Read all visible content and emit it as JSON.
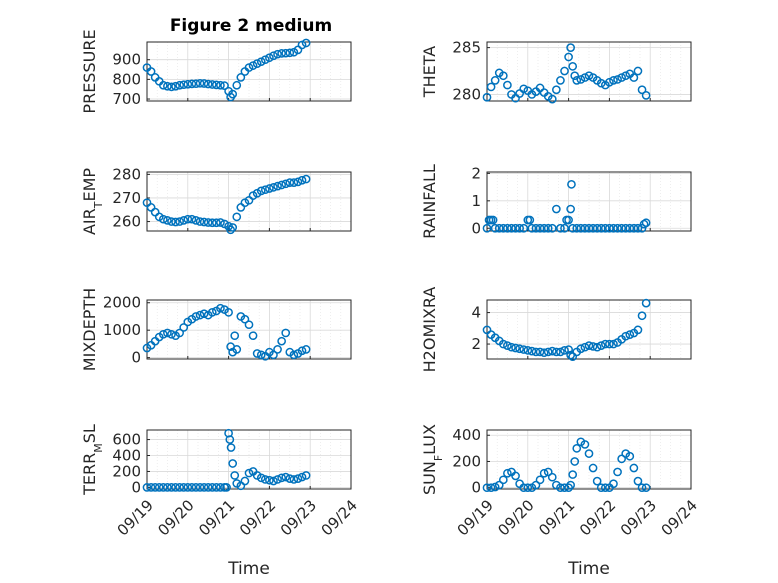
{
  "figure": {
    "title": "Figure 2 medium",
    "marker_color": "#0072BD"
  },
  "chart_data": [
    {
      "type": "scatter",
      "title": "Figure 2 medium",
      "ylabel": "PRESSURE",
      "ylabel_parts": [
        [
          "PRESSURE",
          false
        ]
      ],
      "xlabel": "",
      "xlim": [
        "09/19",
        "09/24"
      ],
      "ylim": [
        690,
        990
      ],
      "yticks": [
        700,
        800,
        900
      ],
      "ytick_labels": [
        "700",
        "800",
        "900"
      ],
      "grid": true,
      "x_tick_labels_shown": false,
      "x": [
        0,
        0.1,
        0.2,
        0.3,
        0.4,
        0.5,
        0.6,
        0.7,
        0.8,
        0.9,
        1,
        1.1,
        1.2,
        1.3,
        1.4,
        1.5,
        1.6,
        1.7,
        1.8,
        1.9,
        2,
        2.05,
        2.1,
        2.2,
        2.3,
        2.4,
        2.5,
        2.6,
        2.7,
        2.8,
        2.9,
        3,
        3.1,
        3.2,
        3.3,
        3.4,
        3.5,
        3.6,
        3.7,
        3.8,
        3.9
      ],
      "y": [
        860,
        840,
        810,
        790,
        770,
        765,
        762,
        765,
        770,
        773,
        775,
        777,
        778,
        780,
        779,
        776,
        774,
        772,
        770,
        768,
        740,
        710,
        725,
        770,
        810,
        840,
        860,
        870,
        880,
        890,
        900,
        910,
        920,
        928,
        932,
        933,
        935,
        938,
        950,
        975,
        985
      ]
    },
    {
      "type": "scatter",
      "ylabel": "THETA",
      "ylabel_parts": [
        [
          "THETA",
          false
        ]
      ],
      "xlabel": "",
      "xlim": [
        "09/19",
        "09/24"
      ],
      "ylim": [
        279.3,
        285.6
      ],
      "yticks": [
        280,
        285
      ],
      "ytick_labels": [
        "280",
        "285"
      ],
      "grid": true,
      "x_tick_labels_shown": false,
      "x": [
        0,
        0.1,
        0.2,
        0.3,
        0.4,
        0.5,
        0.6,
        0.7,
        0.8,
        0.9,
        1,
        1.1,
        1.2,
        1.3,
        1.4,
        1.5,
        1.6,
        1.7,
        1.8,
        1.9,
        2,
        2.05,
        2.1,
        2.15,
        2.2,
        2.3,
        2.4,
        2.5,
        2.6,
        2.7,
        2.8,
        2.9,
        3,
        3.1,
        3.2,
        3.3,
        3.4,
        3.5,
        3.6,
        3.7,
        3.8,
        3.9
      ],
      "y": [
        279.7,
        280.8,
        281.5,
        282.3,
        282.0,
        281.0,
        280.0,
        279.6,
        280.1,
        280.6,
        280.4,
        280.0,
        280.3,
        280.7,
        280.2,
        279.8,
        279.5,
        280.5,
        281.5,
        282.5,
        284.0,
        285.0,
        283.0,
        282.0,
        281.5,
        281.6,
        281.8,
        282.0,
        281.8,
        281.5,
        281.2,
        281.0,
        281.3,
        281.5,
        281.6,
        281.8,
        282.0,
        282.2,
        281.8,
        282.5,
        280.5,
        279.9
      ]
    },
    {
      "type": "scatter",
      "ylabel": "AIR_TEMP",
      "ylabel_parts": [
        [
          "AIR",
          false
        ],
        [
          "T",
          true
        ],
        [
          "EMP",
          false
        ]
      ],
      "xlabel": "",
      "xlim": [
        "09/19",
        "09/24"
      ],
      "ylim": [
        256,
        281
      ],
      "yticks": [
        260,
        270,
        280
      ],
      "ytick_labels": [
        "260",
        "270",
        "280"
      ],
      "grid": true,
      "x_tick_labels_shown": false,
      "x": [
        0,
        0.1,
        0.2,
        0.3,
        0.4,
        0.5,
        0.6,
        0.7,
        0.8,
        0.9,
        1,
        1.1,
        1.2,
        1.3,
        1.4,
        1.5,
        1.6,
        1.7,
        1.8,
        1.9,
        2,
        2.05,
        2.1,
        2.2,
        2.3,
        2.4,
        2.5,
        2.6,
        2.7,
        2.8,
        2.9,
        3,
        3.1,
        3.2,
        3.3,
        3.4,
        3.5,
        3.6,
        3.7,
        3.8,
        3.9
      ],
      "y": [
        268,
        266,
        264,
        262,
        261,
        260.5,
        260,
        259.8,
        260,
        260.5,
        261,
        261,
        260.5,
        260,
        259.8,
        259.6,
        259.5,
        259.5,
        259.6,
        259,
        258,
        256.5,
        257.5,
        262,
        266,
        268,
        269,
        271,
        272,
        273,
        273.5,
        274,
        274.5,
        275,
        275.5,
        276,
        276.5,
        276.5,
        276.8,
        277.5,
        278
      ]
    },
    {
      "type": "scatter",
      "ylabel": "RAINFALL",
      "ylabel_parts": [
        [
          "RAINFALL",
          false
        ]
      ],
      "xlabel": "",
      "xlim": [
        "09/19",
        "09/24"
      ],
      "ylim": [
        -0.1,
        2.05
      ],
      "yticks": [
        0,
        1,
        2
      ],
      "ytick_labels": [
        "0",
        "1",
        "2"
      ],
      "grid": true,
      "x_tick_labels_shown": false,
      "x": [
        0,
        0.05,
        0.1,
        0.15,
        0.2,
        0.3,
        0.4,
        0.5,
        0.6,
        0.7,
        0.8,
        0.9,
        1,
        1.05,
        1.1,
        1.2,
        1.3,
        1.4,
        1.5,
        1.6,
        1.7,
        1.8,
        1.9,
        1.95,
        2,
        2.05,
        2.07,
        2.1,
        2.2,
        2.3,
        2.4,
        2.5,
        2.6,
        2.7,
        2.8,
        2.9,
        3,
        3.1,
        3.2,
        3.3,
        3.4,
        3.5,
        3.6,
        3.7,
        3.8,
        3.85,
        3.9
      ],
      "y": [
        0,
        0.3,
        0.3,
        0.3,
        0,
        0,
        0,
        0,
        0,
        0,
        0,
        0,
        0.3,
        0.3,
        0,
        0,
        0,
        0,
        0,
        0,
        0.7,
        0,
        0,
        0.3,
        0.3,
        0.7,
        1.6,
        0,
        0,
        0,
        0,
        0,
        0,
        0,
        0,
        0,
        0,
        0,
        0,
        0,
        0,
        0,
        0,
        0,
        0,
        0.15,
        0.2
      ]
    },
    {
      "type": "scatter",
      "ylabel": "MIXDEPTH",
      "ylabel_parts": [
        [
          "MIXDEPTH",
          false
        ]
      ],
      "xlabel": "",
      "xlim": [
        "09/19",
        "09/24"
      ],
      "ylim": [
        -50,
        2100
      ],
      "yticks": [
        0,
        1000,
        2000
      ],
      "ytick_labels": [
        "0",
        "1000",
        "2000"
      ],
      "grid": true,
      "x_tick_labels_shown": false,
      "x": [
        0,
        0.1,
        0.2,
        0.3,
        0.4,
        0.5,
        0.6,
        0.7,
        0.8,
        0.9,
        1,
        1.1,
        1.2,
        1.3,
        1.4,
        1.5,
        1.6,
        1.7,
        1.8,
        1.9,
        2,
        2.05,
        2.1,
        2.15,
        2.2,
        2.3,
        2.4,
        2.5,
        2.6,
        2.7,
        2.8,
        2.9,
        3,
        3.1,
        3.2,
        3.3,
        3.4,
        3.5,
        3.6,
        3.7,
        3.8,
        3.9
      ],
      "y": [
        350,
        450,
        600,
        750,
        850,
        900,
        850,
        800,
        900,
        1100,
        1300,
        1400,
        1500,
        1550,
        1600,
        1550,
        1650,
        1700,
        1800,
        1750,
        1650,
        400,
        200,
        800,
        300,
        1500,
        1400,
        1200,
        800,
        150,
        100,
        50,
        200,
        100,
        300,
        600,
        900,
        200,
        100,
        150,
        250,
        300
      ]
    },
    {
      "type": "scatter",
      "ylabel": "H2OMIXRA",
      "ylabel_parts": [
        [
          "H2OMIXRA",
          false
        ]
      ],
      "xlabel": "",
      "xlim": [
        "09/19",
        "09/24"
      ],
      "ylim": [
        1.05,
        4.8
      ],
      "yticks": [
        2,
        4
      ],
      "ytick_labels": [
        "2",
        "4"
      ],
      "grid": true,
      "x_tick_labels_shown": false,
      "x": [
        0,
        0.1,
        0.2,
        0.3,
        0.4,
        0.5,
        0.6,
        0.7,
        0.8,
        0.9,
        1,
        1.1,
        1.2,
        1.3,
        1.4,
        1.5,
        1.6,
        1.7,
        1.8,
        1.9,
        2,
        2.05,
        2.1,
        2.2,
        2.3,
        2.4,
        2.5,
        2.6,
        2.7,
        2.8,
        2.9,
        3,
        3.1,
        3.2,
        3.3,
        3.4,
        3.5,
        3.6,
        3.7,
        3.8,
        3.9
      ],
      "y": [
        2.9,
        2.6,
        2.4,
        2.2,
        2.0,
        1.9,
        1.8,
        1.75,
        1.7,
        1.65,
        1.6,
        1.55,
        1.5,
        1.5,
        1.45,
        1.5,
        1.55,
        1.5,
        1.5,
        1.6,
        1.65,
        1.3,
        1.2,
        1.5,
        1.7,
        1.8,
        1.9,
        1.85,
        1.8,
        1.9,
        2.0,
        2.0,
        2.0,
        2.1,
        2.3,
        2.5,
        2.6,
        2.7,
        2.9,
        3.8,
        4.6
      ]
    },
    {
      "type": "scatter",
      "ylabel": "TERR_MSL",
      "ylabel_parts": [
        [
          "TERR",
          false
        ],
        [
          "M",
          true
        ],
        [
          "SL",
          false
        ]
      ],
      "xlabel": "Time",
      "xlim": [
        "09/19",
        "09/24"
      ],
      "ylim": [
        -20,
        720
      ],
      "yticks": [
        0,
        200,
        400,
        600
      ],
      "ytick_labels": [
        "0",
        "200",
        "400",
        "600"
      ],
      "grid": true,
      "x_tick_labels": [
        "09/19",
        "09/20",
        "09/21",
        "09/22",
        "09/23",
        "09/24"
      ],
      "x": [
        0,
        0.1,
        0.2,
        0.3,
        0.4,
        0.5,
        0.6,
        0.7,
        0.8,
        0.9,
        1,
        1.1,
        1.2,
        1.3,
        1.4,
        1.5,
        1.6,
        1.7,
        1.8,
        1.9,
        1.95,
        2,
        2.03,
        2.06,
        2.1,
        2.15,
        2.2,
        2.3,
        2.4,
        2.5,
        2.6,
        2.7,
        2.8,
        2.9,
        3,
        3.1,
        3.2,
        3.3,
        3.4,
        3.5,
        3.6,
        3.7,
        3.8,
        3.9
      ],
      "y": [
        0,
        0,
        0,
        0,
        0,
        0,
        0,
        0,
        0,
        0,
        0,
        0,
        0,
        0,
        0,
        0,
        0,
        0,
        0,
        0,
        0,
        680,
        600,
        500,
        300,
        150,
        50,
        20,
        80,
        180,
        200,
        150,
        120,
        100,
        90,
        80,
        100,
        120,
        130,
        110,
        100,
        110,
        130,
        150
      ]
    },
    {
      "type": "scatter",
      "ylabel": "SUN_FLUX",
      "ylabel_parts": [
        [
          "SUN",
          false
        ],
        [
          "F",
          true
        ],
        [
          "LUX",
          false
        ]
      ],
      "xlabel": "Time",
      "xlim": [
        "09/19",
        "09/24"
      ],
      "ylim": [
        -10,
        440
      ],
      "yticks": [
        0,
        200,
        400
      ],
      "ytick_labels": [
        "0",
        "200",
        "400"
      ],
      "grid": true,
      "x_tick_labels": [
        "09/19",
        "09/20",
        "09/21",
        "09/22",
        "09/23",
        "09/24"
      ],
      "x": [
        0,
        0.1,
        0.2,
        0.3,
        0.4,
        0.5,
        0.6,
        0.7,
        0.8,
        0.9,
        1,
        1.1,
        1.2,
        1.3,
        1.4,
        1.5,
        1.6,
        1.7,
        1.8,
        1.9,
        2,
        2.05,
        2.1,
        2.15,
        2.2,
        2.3,
        2.4,
        2.5,
        2.6,
        2.7,
        2.8,
        2.9,
        3,
        3.1,
        3.2,
        3.3,
        3.4,
        3.5,
        3.6,
        3.7,
        3.8,
        3.9
      ],
      "y": [
        0,
        0,
        5,
        20,
        60,
        110,
        120,
        90,
        30,
        0,
        0,
        0,
        20,
        60,
        110,
        120,
        80,
        20,
        0,
        0,
        0,
        20,
        100,
        200,
        300,
        350,
        330,
        260,
        150,
        50,
        0,
        0,
        0,
        30,
        120,
        220,
        260,
        240,
        150,
        50,
        0,
        0
      ]
    }
  ]
}
